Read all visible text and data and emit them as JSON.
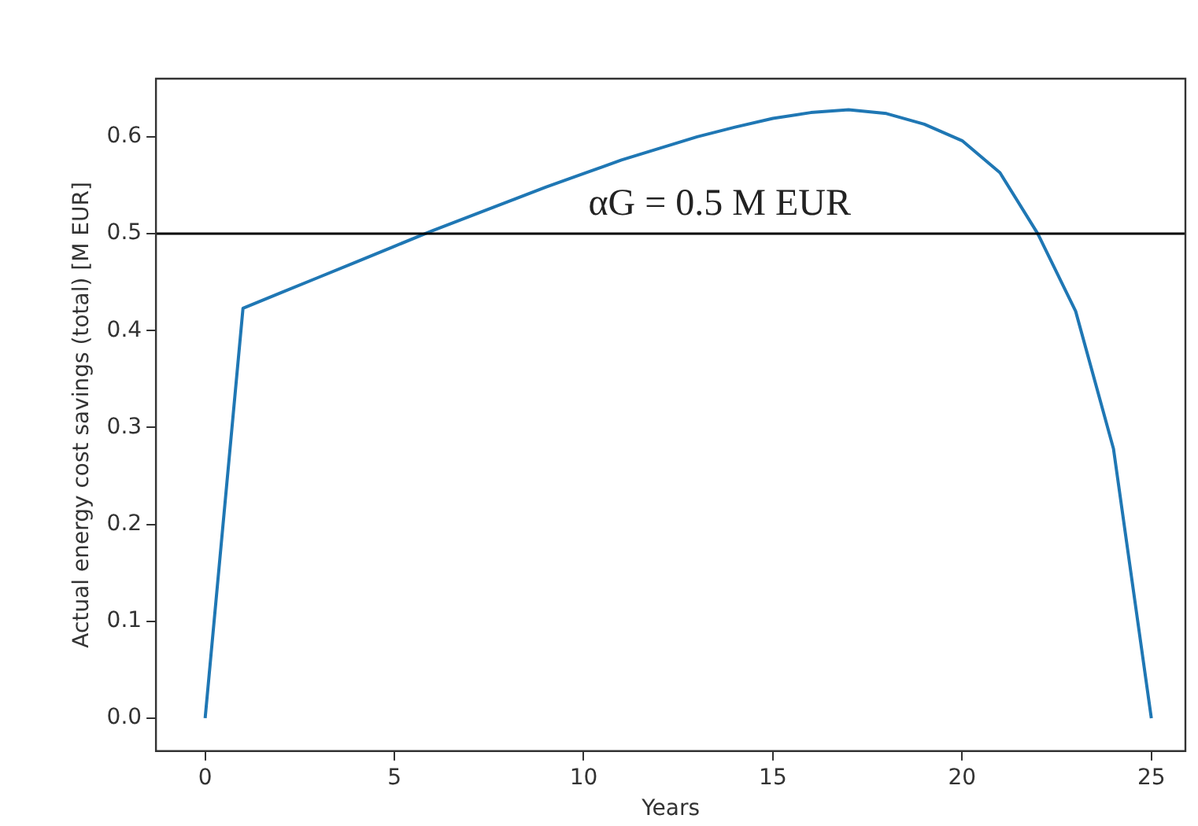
{
  "chart_data": {
    "type": "line",
    "xlabel": "Years",
    "ylabel": "Actual energy cost savings (total) [M EUR]",
    "x": [
      0,
      1,
      2,
      3,
      4,
      5,
      6,
      7,
      8,
      9,
      10,
      11,
      12,
      13,
      14,
      15,
      16,
      17,
      18,
      19,
      20,
      21,
      22,
      23,
      24,
      25
    ],
    "series": [
      {
        "color": "#1f77b4",
        "values": [
          0,
          0.423,
          0.439,
          0.455,
          0.471,
          0.487,
          0.503,
          0.518,
          0.533,
          0.548,
          0.562,
          0.576,
          0.588,
          0.6,
          0.61,
          0.619,
          0.625,
          0.628,
          0.624,
          0.613,
          0.596,
          0.563,
          0.5,
          0.42,
          0.278,
          0
        ]
      }
    ],
    "xlim": [
      -1.3,
      25.9
    ],
    "xticks": [
      0,
      5,
      10,
      15,
      20,
      25
    ],
    "ylim": [
      -0.034,
      0.66
    ],
    "yticks": [
      {
        "value": 0,
        "label": "0.0"
      },
      0.1,
      0.2,
      0.3,
      0.4,
      0.5,
      0.6
    ],
    "ref_lines": [
      {
        "axis": "y",
        "value": 0.5,
        "color": "#000000",
        "label": "αG = 0.5 M EUR"
      }
    ],
    "grid": false,
    "legend": false,
    "marker": "none",
    "line_style": "solid"
  }
}
